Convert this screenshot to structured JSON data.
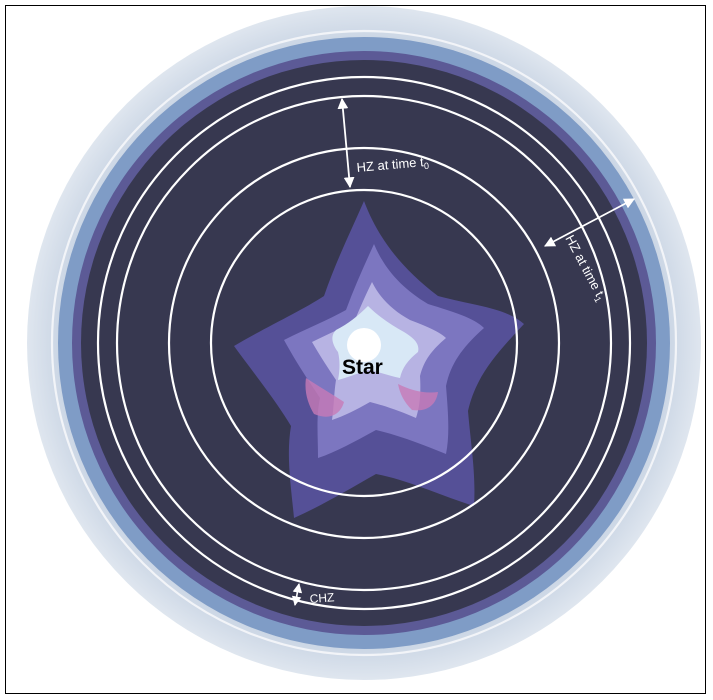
{
  "labels": {
    "hz_t0_prefix": "HZ at time t",
    "hz_t0_sub": "0",
    "hz_t1_prefix": "HZ at time t",
    "hz_t1_sub": "1",
    "chz": "CHZ",
    "star": "Star"
  },
  "colors": {
    "outer_halo": "#bccadb",
    "blue_band": "#7f9cc6",
    "violet_band": "#5c5a96",
    "dark_disk": "#373850",
    "orbit": "#ffffff",
    "star_core": "#ffffff",
    "star_glow_outer": "#5a55a3",
    "star_glow_mid": "#7c76c0",
    "star_glow_inner": "#b7b3e3",
    "star_highlight": "#d8e8f6",
    "star_pink": "#c77bb7"
  }
}
